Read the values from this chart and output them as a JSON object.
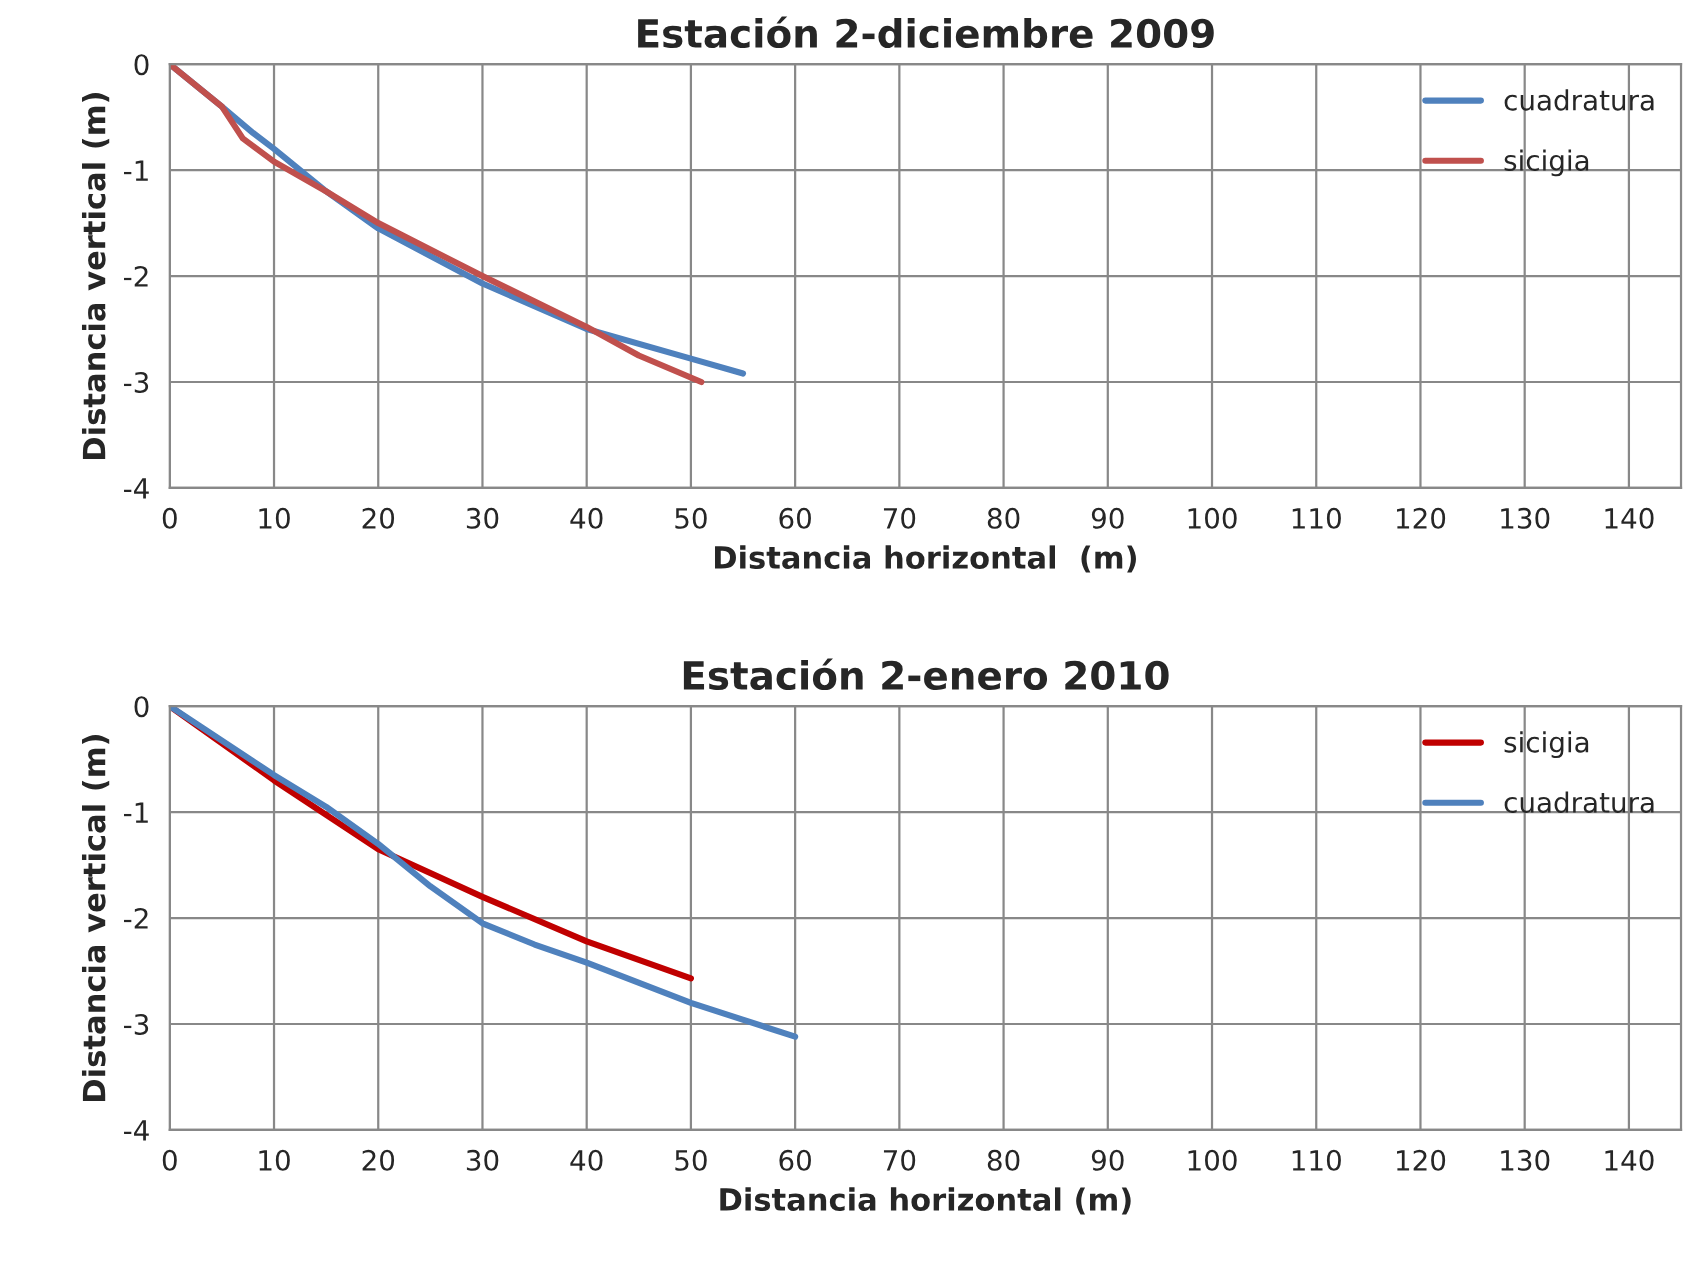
{
  "chart_data": [
    {
      "type": "line",
      "title": "Estación 2-diciembre 2009",
      "xlabel": "Distancia horizontal  (m)",
      "ylabel": "Distancia vertical (m)",
      "xlim": [
        0,
        145
      ],
      "xticks": [
        0,
        10,
        20,
        30,
        40,
        50,
        60,
        70,
        80,
        90,
        100,
        110,
        120,
        130,
        140
      ],
      "ylim": [
        -4,
        0
      ],
      "yticks": [
        -4,
        -3,
        -2,
        -1,
        0
      ],
      "grid": true,
      "legend": "top right",
      "line_style": "solid",
      "marker": "none",
      "series": [
        {
          "name": "cuadratura",
          "color": "#4f81bd",
          "x": [
            0,
            5,
            8,
            10,
            15,
            20,
            30,
            40,
            50,
            55
          ],
          "values": [
            0,
            -0.4,
            -0.65,
            -0.8,
            -1.2,
            -1.55,
            -2.07,
            -2.5,
            -2.78,
            -2.92
          ]
        },
        {
          "name": "sicigia",
          "color": "#c0504d",
          "x": [
            0,
            5,
            7,
            10,
            15,
            20,
            30,
            40,
            45,
            51
          ],
          "values": [
            0,
            -0.4,
            -0.7,
            -0.92,
            -1.2,
            -1.5,
            -2.0,
            -2.48,
            -2.75,
            -3.0
          ]
        }
      ]
    },
    {
      "type": "line",
      "title": "Estación 2-enero 2010",
      "xlabel": "Distancia horizontal (m)",
      "ylabel": "Distancia vertical (m)",
      "xlim": [
        0,
        145
      ],
      "xticks": [
        0,
        10,
        20,
        30,
        40,
        50,
        60,
        70,
        80,
        90,
        100,
        110,
        120,
        130,
        140
      ],
      "ylim": [
        -4,
        0
      ],
      "yticks": [
        -4,
        -3,
        -2,
        -1,
        0
      ],
      "grid": true,
      "legend": "top right",
      "line_style": "solid",
      "marker": "none",
      "series": [
        {
          "name": "sicigia",
          "color": "#c00000",
          "x": [
            0,
            10,
            20,
            30,
            40,
            50
          ],
          "values": [
            0,
            -0.7,
            -1.35,
            -1.8,
            -2.22,
            -2.57
          ]
        },
        {
          "name": "cuadratura",
          "color": "#4f81bd",
          "x": [
            0,
            10,
            15,
            20,
            25,
            30,
            35,
            40,
            50,
            60
          ],
          "values": [
            0,
            -0.65,
            -0.95,
            -1.3,
            -1.7,
            -2.05,
            -2.25,
            -2.42,
            -2.8,
            -3.12
          ]
        }
      ]
    }
  ]
}
